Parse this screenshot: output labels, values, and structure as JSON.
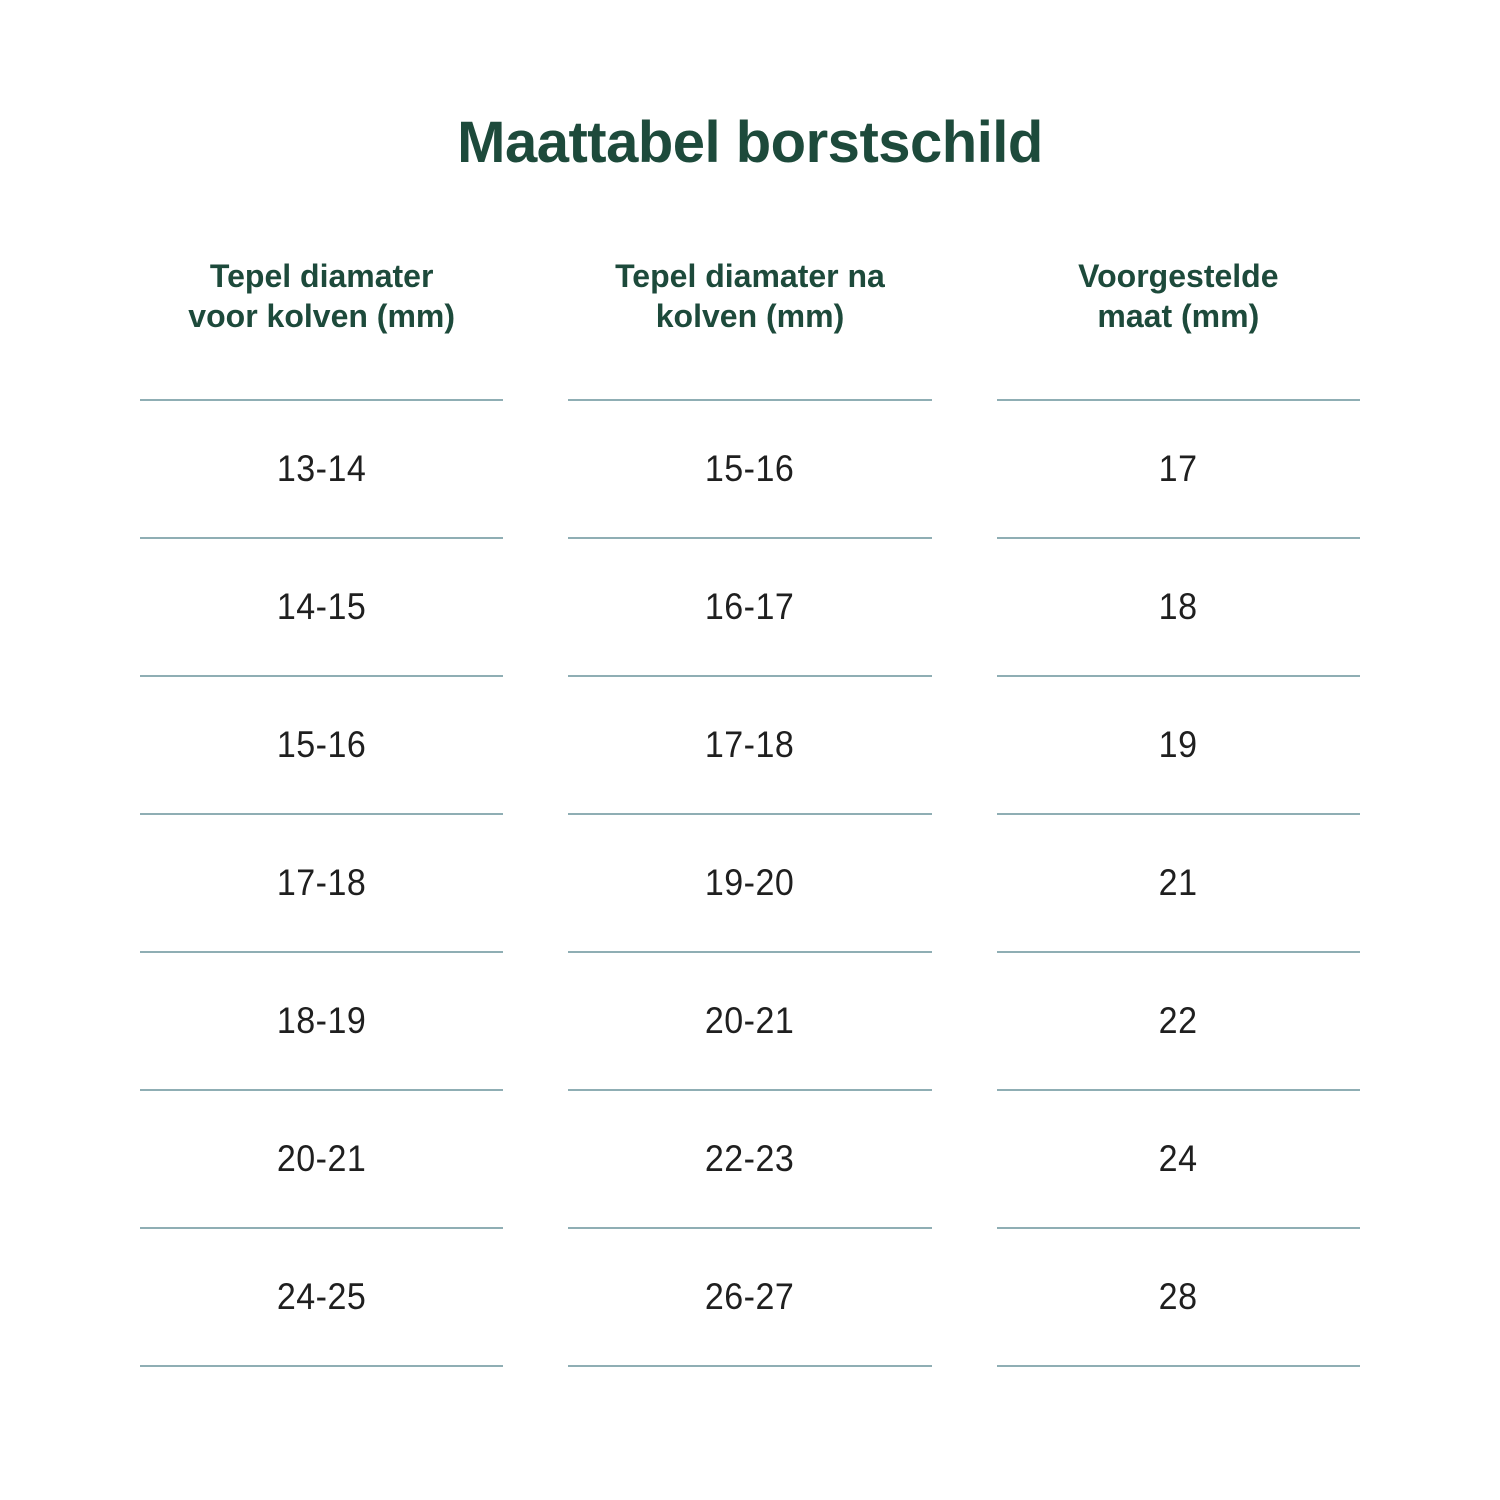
{
  "title": "Maattabel borstschild",
  "colors": {
    "heading_green": "#1D4A3B",
    "cell_text": "#1F1F1F",
    "divider_teal": "#8FAEB4",
    "background": "#FFFFFF"
  },
  "table": {
    "headers": [
      {
        "line1": "Tepel diamater",
        "line2": "voor kolven (mm)"
      },
      {
        "line1": "Tepel diamater na",
        "line2": "kolven (mm)"
      },
      {
        "line1": "Voorgestelde",
        "line2": "maat (mm)"
      }
    ],
    "rows": [
      [
        "13-14",
        "15-16",
        "17"
      ],
      [
        "14-15",
        "16-17",
        "18"
      ],
      [
        "15-16",
        "17-18",
        "19"
      ],
      [
        "17-18",
        "19-20",
        "21"
      ],
      [
        "18-19",
        "20-21",
        "22"
      ],
      [
        "20-21",
        "22-23",
        "24"
      ],
      [
        "24-25",
        "26-27",
        "28"
      ]
    ]
  },
  "chart_data": {
    "type": "table",
    "title": "Maattabel borstschild",
    "columns": [
      "Tepel diamater voor kolven (mm)",
      "Tepel diamater na kolven (mm)",
      "Voorgestelde maat (mm)"
    ],
    "rows": [
      [
        "13-14",
        "15-16",
        "17"
      ],
      [
        "14-15",
        "16-17",
        "18"
      ],
      [
        "15-16",
        "17-18",
        "19"
      ],
      [
        "17-18",
        "19-20",
        "21"
      ],
      [
        "18-19",
        "20-21",
        "22"
      ],
      [
        "20-21",
        "22-23",
        "24"
      ],
      [
        "24-25",
        "26-27",
        "28"
      ]
    ]
  }
}
